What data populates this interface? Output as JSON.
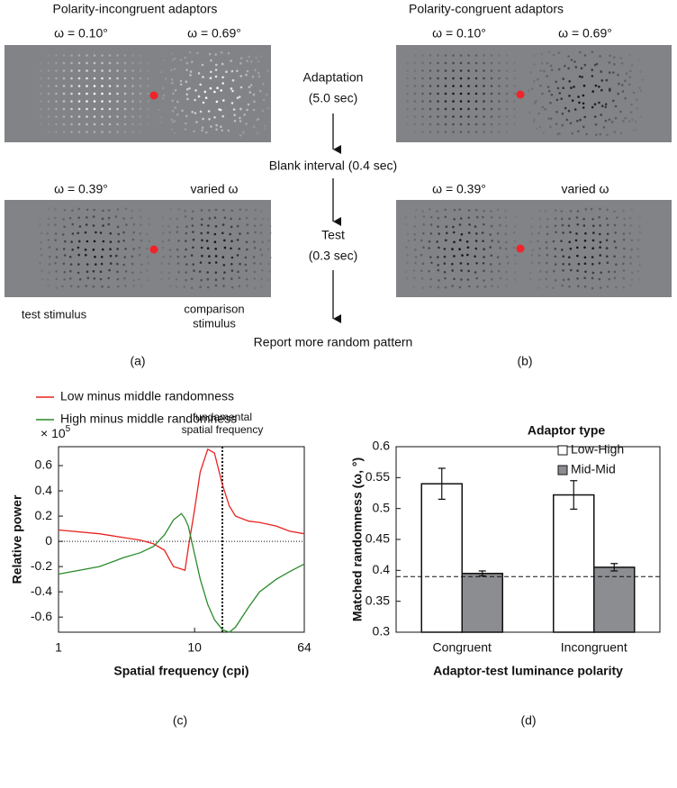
{
  "panels": {
    "a": {
      "title": "Polarity-incongruent adaptors",
      "adapt_labels": [
        "ω = 0.10°",
        "ω = 0.69°"
      ],
      "test_labels": [
        "ω = 0.39°",
        "varied ω"
      ],
      "test_caption": "test stimulus",
      "comparison_caption": [
        "comparison",
        "stimulus"
      ],
      "label": "(a)"
    },
    "b": {
      "title": "Polarity-congruent adaptors",
      "adapt_labels": [
        "ω = 0.10°",
        "ω = 0.69°"
      ],
      "test_labels": [
        "ω = 0.39°",
        "varied ω"
      ],
      "label": "(b)"
    }
  },
  "flow": {
    "adaptation": "Adaptation",
    "adaptation_duration": "(5.0 sec)",
    "blank": "Blank interval (0.4 sec)",
    "test": "Test",
    "test_duration": "(0.3 sec)",
    "report": "Report more random pattern"
  },
  "chart_data": [
    {
      "type": "line",
      "panel_label": "(c)",
      "xlabel": "Spatial frequency (cpi)",
      "ylabel": "Relative power",
      "y_multiplier": {
        "base": "× 10",
        "exponent": "5"
      },
      "reference_x": 16,
      "reference_label": [
        "fundamental",
        "spatial frequency"
      ],
      "zero_line": 0,
      "log_x": true,
      "xlim": [
        1,
        64
      ],
      "xticks": [
        1,
        10,
        64
      ],
      "ylim": [
        -0.72,
        0.75
      ],
      "yticks": [
        -0.6,
        -0.4,
        -0.2,
        0,
        0.2,
        0.4,
        0.6
      ],
      "x": [
        1,
        2,
        3,
        4,
        5,
        6,
        7,
        8,
        8.5,
        9,
        10,
        11,
        12.5,
        14,
        16,
        18,
        20,
        25,
        30,
        40,
        50,
        64
      ],
      "series": [
        {
          "name": "Low minus middle randomness",
          "color": "#e8231f",
          "values": [
            0.09,
            0.06,
            0.03,
            0.01,
            -0.02,
            -0.07,
            -0.2,
            -0.22,
            -0.23,
            -0.05,
            0.25,
            0.55,
            0.73,
            0.7,
            0.45,
            0.28,
            0.2,
            0.16,
            0.15,
            0.12,
            0.08,
            0.06
          ]
        },
        {
          "name": "High minus middle randomness",
          "color": "#2a8a2a",
          "values": [
            -0.26,
            -0.2,
            -0.13,
            -0.09,
            -0.04,
            0.05,
            0.17,
            0.22,
            0.18,
            0.12,
            -0.1,
            -0.3,
            -0.5,
            -0.62,
            -0.7,
            -0.72,
            -0.68,
            -0.52,
            -0.4,
            -0.3,
            -0.24,
            -0.18
          ]
        }
      ],
      "legend": "top-left"
    },
    {
      "type": "bar",
      "panel_label": "(d)",
      "xlabel": "Adaptor-test luminance polarity",
      "ylabel": "Matched randomness (ω, °)",
      "legend_title": "Adaptor type",
      "legend": "top-right",
      "categories": [
        "Congruent",
        "Incongruent"
      ],
      "series": [
        {
          "name": "Low-High",
          "color": "#ffffff",
          "values": [
            0.54,
            0.522
          ],
          "errors": [
            0.025,
            0.023
          ]
        },
        {
          "name": "Mid-Mid",
          "color": "#8c8d91",
          "values": [
            0.395,
            0.405
          ],
          "errors": [
            0.004,
            0.006
          ]
        }
      ],
      "reference_line": 0.39,
      "ylim": [
        0.3,
        0.6
      ],
      "yticks": [
        0.3,
        0.35,
        0.4,
        0.45,
        0.5,
        0.55,
        0.6
      ]
    }
  ]
}
